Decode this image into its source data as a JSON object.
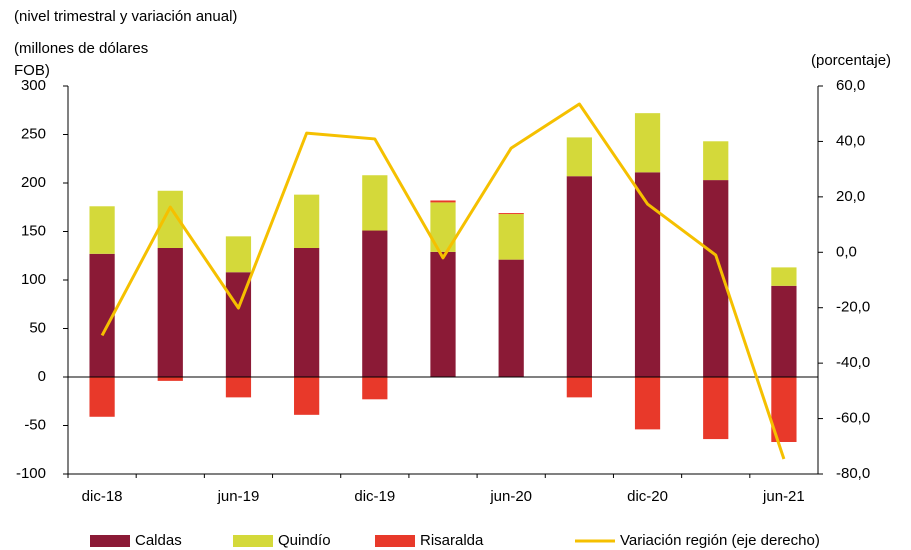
{
  "chart_data": {
    "type": "bar",
    "title": "(nivel trimestral y variación anual)",
    "y_label": "(millones de dólares FOB)",
    "y2_label": "(porcentaje)",
    "categories": [
      "dic-18",
      null,
      "jun-19",
      null,
      "dic-19",
      null,
      "jun-20",
      null,
      "dic-20",
      null,
      "jun-21"
    ],
    "stacked": true,
    "series": [
      {
        "name": "Caldas",
        "color": "#8b1a36",
        "values": [
          127,
          133,
          108,
          133,
          151,
          129,
          121,
          207,
          211,
          203,
          94
        ]
      },
      {
        "name": "Quindío",
        "color": "#d4d93a",
        "values": [
          49,
          59,
          37,
          55,
          57,
          51,
          47,
          40,
          61,
          40,
          19
        ]
      },
      {
        "name": "Risaralda",
        "color": "#e8392a",
        "values": [
          -41,
          -4,
          -21,
          -39,
          -23,
          2,
          1,
          -21,
          -54,
          -64,
          -67
        ]
      },
      {
        "name": "Variación región (eje derecho)",
        "color": "#f5c000",
        "type": "line",
        "axis": "y2",
        "values": [
          -30,
          16.3,
          -20.1,
          43,
          40.9,
          -2,
          37.6,
          53.5,
          17.4,
          -1,
          -74.6
        ]
      }
    ],
    "ylim": [
      -100,
      300
    ],
    "yticks": [
      -100,
      -50,
      0,
      50,
      100,
      150,
      200,
      250,
      300
    ],
    "y2lim": [
      -80,
      60
    ],
    "y2ticks": [
      {
        "value": -80,
        "label": "-80,0"
      },
      {
        "value": -60,
        "label": "-60,0"
      },
      {
        "value": -40,
        "label": "-40,0"
      },
      {
        "value": -20,
        "label": "-20,0"
      },
      {
        "value": 0,
        "label": "0,0"
      },
      {
        "value": 20,
        "label": "20,0"
      },
      {
        "value": 40,
        "label": "40,0"
      },
      {
        "value": 60,
        "label": "60,0"
      }
    ],
    "legend": "bottom"
  }
}
